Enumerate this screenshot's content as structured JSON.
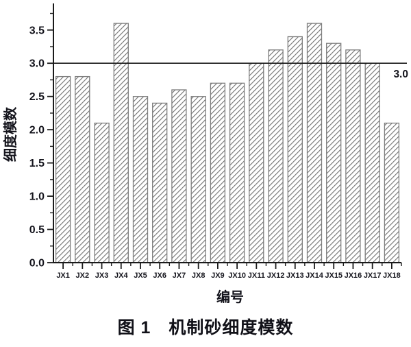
{
  "caption": "图 1　机制砂细度模数",
  "chart_data": {
    "type": "bar",
    "title": "",
    "categories": [
      "JX1",
      "JX2",
      "JX3",
      "JX4",
      "JX5",
      "JX6",
      "JX7",
      "JX8",
      "JX9",
      "JX10",
      "JX11",
      "JX12",
      "JX13",
      "JX14",
      "JX15",
      "JX16",
      "JX17",
      "JX18"
    ],
    "values": [
      2.8,
      2.8,
      2.1,
      3.6,
      2.5,
      2.4,
      2.6,
      2.5,
      2.7,
      2.7,
      3.0,
      3.2,
      3.4,
      3.6,
      3.3,
      3.2,
      3.0,
      2.1
    ],
    "xlabel": "编号",
    "ylabel": "细度模数",
    "ylim": [
      0,
      3.9
    ],
    "y_major_ticks": [
      0.0,
      0.5,
      1.0,
      1.5,
      2.0,
      2.5,
      3.0,
      3.5
    ],
    "y_minor_step": 0.25,
    "ref_line": {
      "value": 3.0,
      "label": "3.0"
    },
    "grid": false,
    "legend": "none",
    "style": {
      "bar_fill": "white-with-diagonal-hatch",
      "hatch_color": "#6b6b6b",
      "bar_border_color": "#7d7d7d",
      "axis_color": "#1a1a1a",
      "text_color": "#14141c",
      "background": "#ffffff"
    }
  }
}
